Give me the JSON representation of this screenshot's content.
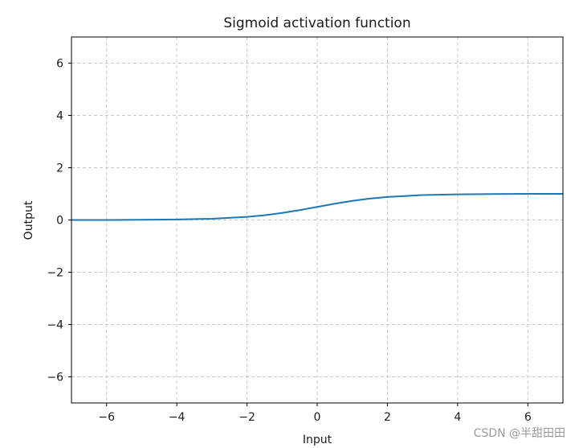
{
  "chart_data": {
    "type": "line",
    "title": "Sigmoid activation function",
    "xlabel": "Input",
    "ylabel": "Output",
    "xlim": [
      -7,
      7
    ],
    "ylim": [
      -7,
      7
    ],
    "x_ticks": [
      -6,
      -4,
      -2,
      0,
      2,
      4,
      6
    ],
    "y_ticks": [
      -6,
      -4,
      -2,
      0,
      2,
      4,
      6
    ],
    "grid": true,
    "series": [
      {
        "color": "#1f77b4",
        "x": [
          -7,
          -6,
          -5,
          -4,
          -3,
          -2,
          -1.5,
          -1,
          -0.5,
          0,
          0.5,
          1,
          1.5,
          2,
          3,
          4,
          5,
          6,
          7
        ],
        "y": [
          0.001,
          0.002,
          0.007,
          0.018,
          0.047,
          0.119,
          0.182,
          0.269,
          0.378,
          0.5,
          0.622,
          0.731,
          0.818,
          0.881,
          0.953,
          0.982,
          0.993,
          0.998,
          0.999
        ]
      }
    ]
  },
  "watermark": "CSDN @半甜田田"
}
